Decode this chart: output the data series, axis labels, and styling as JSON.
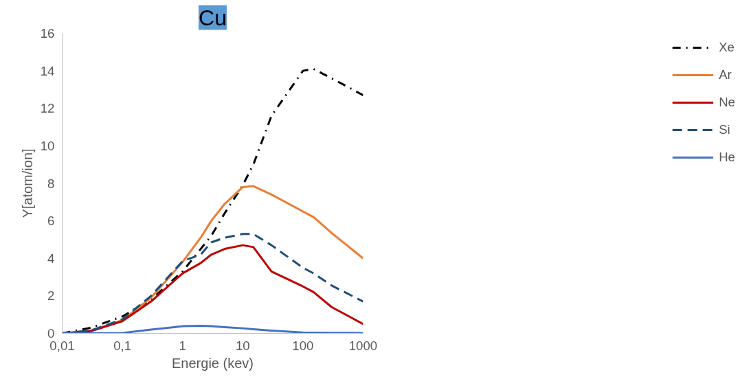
{
  "chart_data": {
    "type": "line",
    "title": "Cu",
    "xlabel": "Energie (kev)",
    "ylabel": "Y[atom/ion]",
    "log": "x",
    "grid": false,
    "legend": "right",
    "xlim": [
      0.01,
      1000
    ],
    "ylim": [
      0,
      16
    ],
    "xticks": [
      {
        "value": 0.01,
        "label": "0,01"
      },
      {
        "value": 0.1,
        "label": "0,1"
      },
      1,
      10,
      100,
      1000
    ],
    "yticks": [
      0,
      2,
      4,
      6,
      8,
      10,
      12,
      14,
      16
    ],
    "x": [
      0.01,
      0.03,
      0.1,
      0.3,
      1,
      2,
      3,
      5,
      10,
      15,
      30,
      100,
      150,
      300,
      1000
    ],
    "series": [
      {
        "name": "Xe",
        "color": "#000000",
        "line_style": "dashdot",
        "values": [
          0,
          0.3,
          0.9,
          1.8,
          3.3,
          4.5,
          5.2,
          6.4,
          7.9,
          9.0,
          11.6,
          14.0,
          14.1,
          13.6,
          12.7
        ]
      },
      {
        "name": "Ar",
        "color": "#ed7d31",
        "line_style": "solid",
        "values": [
          0,
          0.15,
          0.7,
          1.9,
          3.8,
          5.1,
          6.0,
          6.9,
          7.8,
          7.85,
          7.4,
          6.5,
          6.2,
          5.35,
          4.0
        ]
      },
      {
        "name": "Ne",
        "color": "#c00000",
        "line_style": "solid",
        "values": [
          0,
          0.12,
          0.65,
          1.7,
          3.2,
          3.75,
          4.2,
          4.5,
          4.7,
          4.6,
          3.3,
          2.5,
          2.2,
          1.4,
          0.5
        ]
      },
      {
        "name": "Si",
        "color": "#1f4e79",
        "line_style": "dashed",
        "values": [
          0,
          0.15,
          0.75,
          2.0,
          3.85,
          4.2,
          4.85,
          5.1,
          5.3,
          5.3,
          4.7,
          3.5,
          3.2,
          2.55,
          1.7
        ]
      },
      {
        "name": "He",
        "color": "#4472c4",
        "line_style": "solid",
        "values": [
          0,
          0,
          0.02,
          0.2,
          0.38,
          0.4,
          0.38,
          0.33,
          0.27,
          0.22,
          0.15,
          0.05,
          0.04,
          0.03,
          0.02
        ]
      }
    ]
  }
}
